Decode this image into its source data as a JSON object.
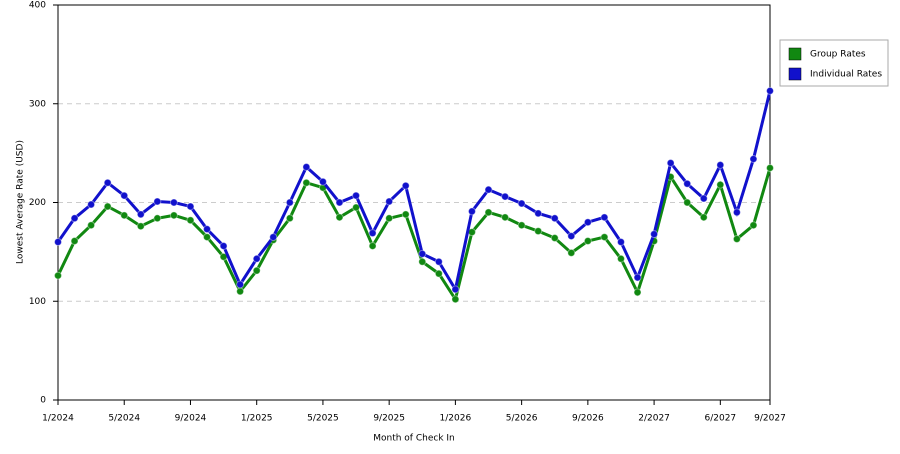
{
  "chart_data": {
    "type": "line",
    "ylabel": "Lowest Average Rate (USD)",
    "xlabel": "Month of Check In",
    "categories": [
      "1/2024",
      null,
      null,
      null,
      "5/2024",
      null,
      null,
      null,
      "9/2024",
      null,
      null,
      null,
      "1/2025",
      null,
      null,
      null,
      "5/2025",
      null,
      null,
      null,
      "9/2025",
      null,
      null,
      null,
      "1/2026",
      null,
      null,
      null,
      "5/2026",
      null,
      null,
      null,
      "9/2026",
      null,
      null,
      null,
      "2/2027",
      null,
      null,
      null,
      "6/2027",
      null,
      null,
      "9/2027"
    ],
    "series": [
      {
        "name": "Group Rates",
        "color": "#118811",
        "values": [
          126,
          161,
          177,
          196,
          187,
          176,
          184,
          187,
          182,
          165,
          145,
          110,
          131,
          162,
          184,
          220,
          215,
          185,
          195,
          156,
          184,
          188,
          140,
          128,
          102,
          170,
          190,
          185,
          177,
          171,
          164,
          149,
          161,
          165,
          143,
          109,
          161,
          226,
          200,
          185,
          218,
          163,
          177,
          235
        ]
      },
      {
        "name": "Individual Rates",
        "color": "#1111cc",
        "values": [
          160,
          184,
          198,
          220,
          207,
          188,
          201,
          200,
          196,
          173,
          156,
          117,
          143,
          165,
          200,
          236,
          221,
          200,
          207,
          169,
          201,
          217,
          148,
          140,
          112,
          191,
          213,
          206,
          199,
          189,
          184,
          166,
          180,
          185,
          160,
          124,
          168,
          240,
          219,
          204,
          238,
          190,
          244,
          313
        ]
      }
    ],
    "ylim": [
      0,
      400
    ],
    "yticks": [
      0,
      100,
      200,
      300,
      400
    ],
    "grid": true,
    "legend": "right"
  }
}
